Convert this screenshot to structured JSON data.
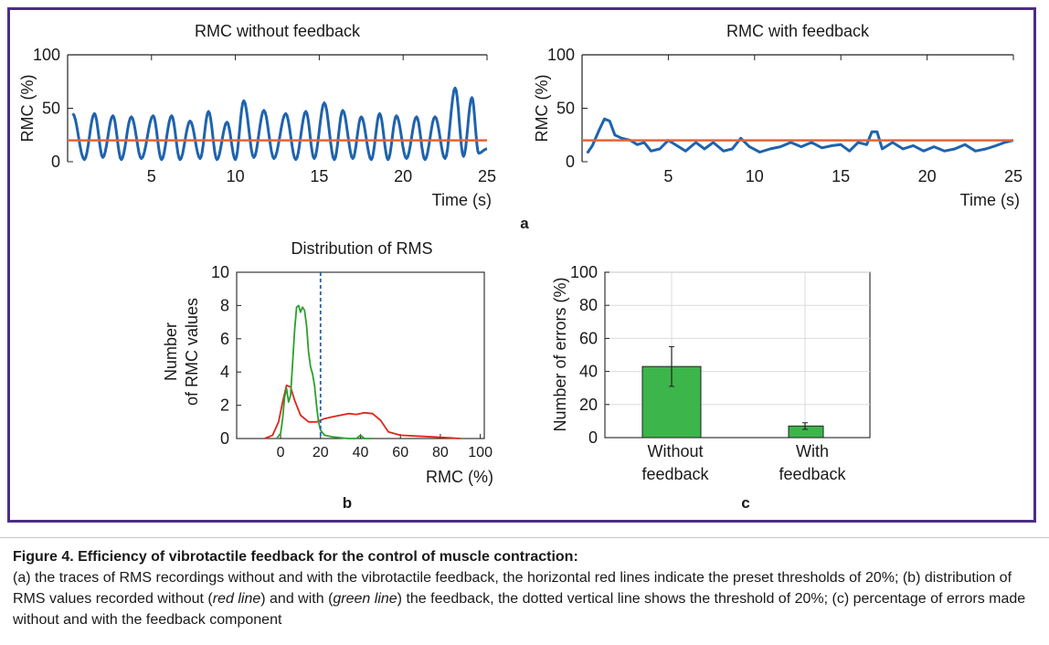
{
  "colors": {
    "frame": "#4b2e83",
    "trace": "#1f63ad",
    "threshold": "#e2643a",
    "red_line": "#e0251b",
    "green_line": "#2ca02c",
    "bar_fill": "#3cb54a",
    "dotted": "#1f63ad"
  },
  "caption": {
    "title": "Figure 4. Efficiency of vibrotactile feedback for the control of muscle contraction:",
    "part1": "(a) the traces of RMS recordings without and with the vibrotactile feedback, the horizontal red lines indicate the preset thresholds of 20%; (b) distribution of RMS values recorded without (",
    "red_line": "red line",
    "part2": ") and with (",
    "green_line": "green line",
    "part3": ") the feedback, the dotted vertical line shows the threshold of 20%; (c) percentage of errors made without and with the feedback component"
  },
  "panel_labels": {
    "a": "a",
    "b": "b",
    "c": "c"
  },
  "chart_data": [
    {
      "id": "a1",
      "type": "line",
      "title": "RMC without feedback",
      "xlabel": "Time (s)",
      "ylabel": "RMC (%)",
      "xlim": [
        0,
        25
      ],
      "ylim": [
        0,
        100
      ],
      "x_ticks": [
        5,
        10,
        15,
        20,
        25
      ],
      "y_ticks": [
        0,
        50,
        100
      ],
      "threshold": 20,
      "peaks": [
        [
          0.3,
          45
        ],
        [
          1.6,
          45
        ],
        [
          2.7,
          43
        ],
        [
          3.8,
          42
        ],
        [
          5.1,
          43
        ],
        [
          6.2,
          43
        ],
        [
          7.3,
          38
        ],
        [
          8.4,
          47
        ],
        [
          9.5,
          37
        ],
        [
          10.5,
          57
        ],
        [
          11.7,
          48
        ],
        [
          13.0,
          45
        ],
        [
          14.2,
          47
        ],
        [
          15.3,
          55
        ],
        [
          16.4,
          48
        ],
        [
          17.5,
          42
        ],
        [
          18.6,
          45
        ],
        [
          19.6,
          43
        ],
        [
          20.8,
          42
        ],
        [
          21.9,
          42
        ],
        [
          23.1,
          69
        ],
        [
          24.1,
          60
        ]
      ],
      "troughs": [
        [
          1.0,
          2
        ],
        [
          2.1,
          4
        ],
        [
          3.2,
          2
        ],
        [
          4.4,
          3
        ],
        [
          5.6,
          2
        ],
        [
          6.7,
          2
        ],
        [
          7.9,
          3
        ],
        [
          8.9,
          2
        ],
        [
          10.0,
          2
        ],
        [
          11.1,
          4
        ],
        [
          12.3,
          3
        ],
        [
          13.6,
          2
        ],
        [
          14.7,
          3
        ],
        [
          15.9,
          2
        ],
        [
          17.0,
          3
        ],
        [
          18.1,
          2
        ],
        [
          19.1,
          2
        ],
        [
          20.2,
          3
        ],
        [
          21.3,
          2
        ],
        [
          22.5,
          3
        ],
        [
          23.6,
          5
        ],
        [
          24.5,
          8
        ],
        [
          25.0,
          12
        ]
      ]
    },
    {
      "id": "a2",
      "type": "line",
      "title": "RMC with feedback",
      "xlabel": "Time (s)",
      "ylabel": "RMC (%)",
      "xlim": [
        0,
        25
      ],
      "ylim": [
        0,
        100
      ],
      "x_ticks": [
        5,
        10,
        15,
        20,
        25
      ],
      "y_ticks": [
        0,
        50,
        100
      ],
      "threshold": 20,
      "points": [
        [
          0.3,
          8
        ],
        [
          0.6,
          15
        ],
        [
          1.0,
          30
        ],
        [
          1.3,
          40
        ],
        [
          1.6,
          38
        ],
        [
          1.9,
          25
        ],
        [
          2.3,
          22
        ],
        [
          2.8,
          20
        ],
        [
          3.2,
          16
        ],
        [
          3.6,
          18
        ],
        [
          4.0,
          10
        ],
        [
          4.5,
          12
        ],
        [
          5.0,
          20
        ],
        [
          5.5,
          15
        ],
        [
          6.0,
          10
        ],
        [
          6.6,
          18
        ],
        [
          7.1,
          12
        ],
        [
          7.6,
          18
        ],
        [
          8.2,
          10
        ],
        [
          8.7,
          12
        ],
        [
          9.2,
          22
        ],
        [
          9.7,
          14
        ],
        [
          10.3,
          9
        ],
        [
          10.9,
          12
        ],
        [
          11.5,
          14
        ],
        [
          12.1,
          18
        ],
        [
          12.7,
          14
        ],
        [
          13.3,
          18
        ],
        [
          13.9,
          13
        ],
        [
          14.5,
          15
        ],
        [
          15.0,
          16
        ],
        [
          15.5,
          10
        ],
        [
          16.0,
          18
        ],
        [
          16.5,
          16
        ],
        [
          16.8,
          28
        ],
        [
          17.1,
          28
        ],
        [
          17.4,
          12
        ],
        [
          18.0,
          18
        ],
        [
          18.6,
          12
        ],
        [
          19.2,
          15
        ],
        [
          19.8,
          10
        ],
        [
          20.4,
          14
        ],
        [
          21.0,
          10
        ],
        [
          21.6,
          12
        ],
        [
          22.2,
          16
        ],
        [
          22.8,
          10
        ],
        [
          23.4,
          12
        ],
        [
          24.0,
          15
        ],
        [
          24.5,
          18
        ],
        [
          25.0,
          20
        ]
      ]
    },
    {
      "id": "b",
      "type": "line",
      "title": "Distribution of RMS",
      "xlabel": "RMC (%)",
      "ylabel_lines": [
        "Number",
        "of RMC values"
      ],
      "xlim": [
        -22,
        102
      ],
      "ylim": [
        0,
        10
      ],
      "x_ticks": [
        0,
        20,
        40,
        60,
        80,
        100
      ],
      "y_ticks": [
        0,
        2,
        4,
        6,
        8,
        10
      ],
      "threshold": 20,
      "series": [
        {
          "color_key": "red_line",
          "points": [
            [
              -8,
              0
            ],
            [
              -4,
              0.2
            ],
            [
              -1,
              1.0
            ],
            [
              1,
              2.2
            ],
            [
              3,
              3.2
            ],
            [
              5,
              3.1
            ],
            [
              7,
              2.3
            ],
            [
              10,
              1.4
            ],
            [
              14,
              1.0
            ],
            [
              18,
              1.0
            ],
            [
              22,
              1.2
            ],
            [
              26,
              1.3
            ],
            [
              30,
              1.4
            ],
            [
              34,
              1.5
            ],
            [
              38,
              1.45
            ],
            [
              42,
              1.55
            ],
            [
              46,
              1.5
            ],
            [
              50,
              1.1
            ],
            [
              54,
              0.4
            ],
            [
              60,
              0.2
            ],
            [
              68,
              0.15
            ],
            [
              76,
              0.1
            ],
            [
              84,
              0.05
            ],
            [
              90,
              0
            ]
          ]
        },
        {
          "color_key": "green_line",
          "points": [
            [
              -2,
              0
            ],
            [
              0,
              0.3
            ],
            [
              1,
              1.2
            ],
            [
              2,
              2.5
            ],
            [
              3,
              3.0
            ],
            [
              4,
              2.2
            ],
            [
              5,
              2.6
            ],
            [
              6,
              4.5
            ],
            [
              7,
              6.5
            ],
            [
              8,
              7.9
            ],
            [
              9,
              8.0
            ],
            [
              10,
              7.6
            ],
            [
              11,
              7.9
            ],
            [
              12,
              7.7
            ],
            [
              13,
              6.8
            ],
            [
              14,
              5.2
            ],
            [
              15,
              4.3
            ],
            [
              16,
              3.9
            ],
            [
              17,
              3.2
            ],
            [
              18,
              2.0
            ],
            [
              19,
              1.0
            ],
            [
              20,
              0.5
            ],
            [
              22,
              0.2
            ],
            [
              26,
              0.1
            ],
            [
              30,
              0.05
            ],
            [
              34,
              0
            ],
            [
              38,
              0
            ],
            [
              40,
              0.2
            ],
            [
              42,
              0
            ],
            [
              46,
              0
            ]
          ]
        }
      ]
    },
    {
      "id": "c",
      "type": "bar",
      "ylabel": "Number of errors (%)",
      "ylim": [
        0,
        100
      ],
      "y_ticks": [
        0,
        20,
        40,
        60,
        80,
        100
      ],
      "categories": [
        [
          "Without",
          "feedback"
        ],
        [
          "With",
          "feedback"
        ]
      ],
      "values": [
        43,
        7
      ],
      "error": [
        [
          31,
          55
        ],
        [
          5,
          9
        ]
      ],
      "grid": true
    }
  ]
}
